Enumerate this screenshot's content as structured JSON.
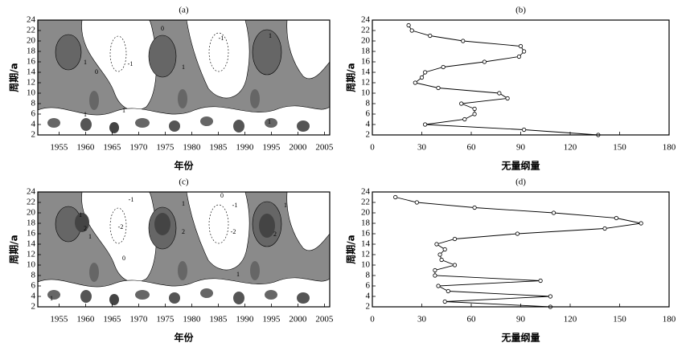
{
  "chart_data": [
    {
      "type": "contour",
      "title": "(a)",
      "xlabel": "年份",
      "ylabel": "周期/a",
      "xlim": [
        1951,
        2006
      ],
      "ylim": [
        2,
        24
      ],
      "xticks": [
        1955,
        1960,
        1965,
        1970,
        1975,
        1980,
        1985,
        1990,
        1995,
        2000,
        2005
      ],
      "yticks": [
        2,
        4,
        6,
        8,
        10,
        12,
        14,
        16,
        18,
        20,
        22,
        24
      ],
      "annotations": [
        "0",
        "1",
        "-1",
        "1",
        "1",
        "0",
        "1",
        "-1",
        "1",
        "1"
      ]
    },
    {
      "type": "line",
      "title": "(b)",
      "xlabel": "无量纲量",
      "ylabel": "周期/a",
      "xlim": [
        0,
        180
      ],
      "ylim": [
        2,
        24
      ],
      "xticks": [
        0,
        30,
        60,
        90,
        120,
        150,
        180
      ],
      "yticks": [
        2,
        4,
        6,
        8,
        10,
        12,
        14,
        16,
        18,
        20,
        22,
        24
      ],
      "y": [
        2,
        3,
        4,
        5,
        6,
        7,
        8,
        9,
        10,
        11,
        12,
        13,
        14,
        15,
        16,
        17,
        18,
        19,
        20,
        21,
        22,
        23
      ],
      "values": [
        137,
        92,
        32,
        56,
        62,
        62,
        54,
        82,
        77,
        40,
        26,
        30,
        32,
        43,
        68,
        89,
        92,
        90,
        55,
        35,
        24,
        22
      ]
    },
    {
      "type": "contour",
      "title": "(c)",
      "xlabel": "年份",
      "ylabel": "周期/a",
      "xlim": [
        1951,
        2006
      ],
      "ylim": [
        2,
        24
      ],
      "xticks": [
        1955,
        1960,
        1965,
        1970,
        1975,
        1980,
        1985,
        1990,
        1995,
        2000,
        2005
      ],
      "yticks": [
        2,
        4,
        6,
        8,
        10,
        12,
        14,
        16,
        18,
        20,
        22,
        24
      ],
      "annotations": [
        "1",
        "2",
        "1",
        "-1",
        "-2",
        "1",
        "2",
        "0",
        "-1",
        "-2",
        "1",
        "2",
        "0",
        "1",
        "1"
      ]
    },
    {
      "type": "line",
      "title": "(d)",
      "xlabel": "无量纲量",
      "ylabel": "周期/a",
      "xlim": [
        0,
        180
      ],
      "ylim": [
        2,
        24
      ],
      "xticks": [
        0,
        30,
        60,
        90,
        120,
        150,
        180
      ],
      "yticks": [
        2,
        4,
        6,
        8,
        10,
        12,
        14,
        16,
        18,
        20,
        22,
        24
      ],
      "y": [
        2,
        3,
        4,
        5,
        6,
        7,
        8,
        9,
        10,
        11,
        12,
        13,
        14,
        15,
        16,
        17,
        18,
        19,
        20,
        21,
        22,
        23
      ],
      "values": [
        108,
        44,
        108,
        46,
        40,
        102,
        38,
        38,
        50,
        42,
        41,
        44,
        39,
        50,
        88,
        141,
        163,
        148,
        110,
        62,
        27,
        14
      ]
    }
  ]
}
